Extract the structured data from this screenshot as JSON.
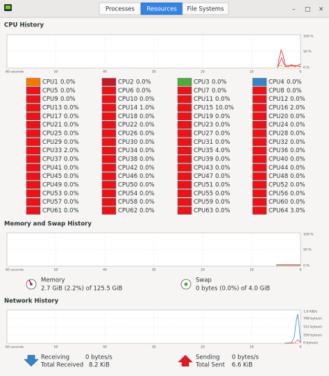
{
  "tabs": [
    "Processes",
    "Resources",
    "File Systems"
  ],
  "window_buttons": [
    "–",
    "□",
    "×"
  ],
  "cpu_history": {
    "title": "CPU History",
    "y_labels": [
      "100 %",
      "50 %",
      "0 %"
    ],
    "x_labels": [
      "60 seconds",
      "50",
      "40",
      "30",
      "20",
      "10",
      "0"
    ],
    "cpus": [
      {
        "name": "CPU1",
        "usage": "0.0%",
        "color": "#f57900"
      },
      {
        "name": "CPU2",
        "usage": "0.0%",
        "color": "#c01c28"
      },
      {
        "name": "CPU3",
        "usage": "0.0%",
        "color": "#4eaa3c"
      },
      {
        "name": "CPU4",
        "usage": "0.0%",
        "color": "#3584c4"
      },
      {
        "name": "CPU5",
        "usage": "0.0%",
        "color": "#e8141a"
      },
      {
        "name": "CPU6",
        "usage": "0.0%",
        "color": "#e8141a"
      },
      {
        "name": "CPU7",
        "usage": "0.0%",
        "color": "#e8141a"
      },
      {
        "name": "CPU8",
        "usage": "0.0%",
        "color": "#e8141a"
      },
      {
        "name": "CPU9",
        "usage": "0.0%",
        "color": "#e8141a"
      },
      {
        "name": "CPU10",
        "usage": "0.0%",
        "color": "#e8141a"
      },
      {
        "name": "CPU11",
        "usage": "0.0%",
        "color": "#e8141a"
      },
      {
        "name": "CPU12",
        "usage": "0.0%",
        "color": "#e8141a"
      },
      {
        "name": "CPU13",
        "usage": "0.0%",
        "color": "#e8141a"
      },
      {
        "name": "CPU14",
        "usage": "1.0%",
        "color": "#e8141a"
      },
      {
        "name": "CPU15",
        "usage": "10.0%",
        "color": "#e8141a"
      },
      {
        "name": "CPU16",
        "usage": "2.0%",
        "color": "#e8141a"
      },
      {
        "name": "CPU17",
        "usage": "0.0%",
        "color": "#e8141a"
      },
      {
        "name": "CPU18",
        "usage": "0.0%",
        "color": "#e8141a"
      },
      {
        "name": "CPU19",
        "usage": "0.0%",
        "color": "#e8141a"
      },
      {
        "name": "CPU20",
        "usage": "0.0%",
        "color": "#e8141a"
      },
      {
        "name": "CPU21",
        "usage": "0.0%",
        "color": "#e8141a"
      },
      {
        "name": "CPU22",
        "usage": "0.0%",
        "color": "#e8141a"
      },
      {
        "name": "CPU23",
        "usage": "0.0%",
        "color": "#e8141a"
      },
      {
        "name": "CPU24",
        "usage": "0.0%",
        "color": "#e8141a"
      },
      {
        "name": "CPU25",
        "usage": "0.0%",
        "color": "#e8141a"
      },
      {
        "name": "CPU26",
        "usage": "0.0%",
        "color": "#e8141a"
      },
      {
        "name": "CPU27",
        "usage": "0.0%",
        "color": "#e8141a"
      },
      {
        "name": "CPU28",
        "usage": "0.0%",
        "color": "#e8141a"
      },
      {
        "name": "CPU29",
        "usage": "0.0%",
        "color": "#e8141a"
      },
      {
        "name": "CPU30",
        "usage": "0.0%",
        "color": "#e8141a"
      },
      {
        "name": "CPU31",
        "usage": "0.0%",
        "color": "#e8141a"
      },
      {
        "name": "CPU32",
        "usage": "0.0%",
        "color": "#e8141a"
      },
      {
        "name": "CPU33",
        "usage": "2.0%",
        "color": "#e8141a"
      },
      {
        "name": "CPU34",
        "usage": "0.0%",
        "color": "#e8141a"
      },
      {
        "name": "CPU35",
        "usage": "4.0%",
        "color": "#e8141a"
      },
      {
        "name": "CPU36",
        "usage": "0.0%",
        "color": "#e8141a"
      },
      {
        "name": "CPU37",
        "usage": "0.0%",
        "color": "#e8141a"
      },
      {
        "name": "CPU38",
        "usage": "0.0%",
        "color": "#e8141a"
      },
      {
        "name": "CPU39",
        "usage": "0.0%",
        "color": "#e8141a"
      },
      {
        "name": "CPU40",
        "usage": "0.0%",
        "color": "#e8141a"
      },
      {
        "name": "CPU41",
        "usage": "0.0%",
        "color": "#e8141a"
      },
      {
        "name": "CPU42",
        "usage": "0.0%",
        "color": "#e8141a"
      },
      {
        "name": "CPU43",
        "usage": "0.0%",
        "color": "#e8141a"
      },
      {
        "name": "CPU44",
        "usage": "0.0%",
        "color": "#e8141a"
      },
      {
        "name": "CPU45",
        "usage": "0.0%",
        "color": "#e8141a"
      },
      {
        "name": "CPU46",
        "usage": "0.0%",
        "color": "#e8141a"
      },
      {
        "name": "CPU47",
        "usage": "0.0%",
        "color": "#e8141a"
      },
      {
        "name": "CPU48",
        "usage": "0.0%",
        "color": "#e8141a"
      },
      {
        "name": "CPU49",
        "usage": "0.0%",
        "color": "#e8141a"
      },
      {
        "name": "CPU50",
        "usage": "0.0%",
        "color": "#e8141a"
      },
      {
        "name": "CPU51",
        "usage": "0.0%",
        "color": "#e8141a"
      },
      {
        "name": "CPU52",
        "usage": "0.0%",
        "color": "#e8141a"
      },
      {
        "name": "CPU53",
        "usage": "0.0%",
        "color": "#e8141a"
      },
      {
        "name": "CPU54",
        "usage": "0.0%",
        "color": "#e8141a"
      },
      {
        "name": "CPU55",
        "usage": "0.0%",
        "color": "#e8141a"
      },
      {
        "name": "CPU56",
        "usage": "0.0%",
        "color": "#e8141a"
      },
      {
        "name": "CPU57",
        "usage": "0.0%",
        "color": "#e8141a"
      },
      {
        "name": "CPU58",
        "usage": "0.0%",
        "color": "#e8141a"
      },
      {
        "name": "CPU59",
        "usage": "0.0%",
        "color": "#e8141a"
      },
      {
        "name": "CPU60",
        "usage": "0.0%",
        "color": "#e8141a"
      },
      {
        "name": "CPU61",
        "usage": "0.0%",
        "color": "#e8141a"
      },
      {
        "name": "CPU62",
        "usage": "0.0%",
        "color": "#e8141a"
      },
      {
        "name": "CPU63",
        "usage": "0.0%",
        "color": "#e8141a"
      },
      {
        "name": "CPU64",
        "usage": "3.0%",
        "color": "#e8141a"
      }
    ]
  },
  "memory_history": {
    "title": "Memory and Swap History",
    "y_labels": [
      "100 %",
      "50 %",
      "0 %"
    ],
    "x_labels": [
      "60 seconds",
      "50",
      "40",
      "30",
      "20",
      "10",
      "0"
    ],
    "memory": {
      "label": "Memory",
      "detail": "2.7 GiB (2.2%) of 125.5 GiB"
    },
    "swap": {
      "label": "Swap",
      "detail": "0 bytes (0.0%) of 4.0 GiB"
    }
  },
  "network_history": {
    "title": "Network History",
    "y_labels": [
      "1.0 KiB/s",
      "768 bytes/s",
      "512 bytes/s",
      "256 bytes/s",
      "0 bytes/s"
    ],
    "x_labels": [
      "60 seconds",
      "50",
      "40",
      "30",
      "20",
      "10",
      "0"
    ],
    "receiving": {
      "label": "Receiving",
      "rate": "0 bytes/s",
      "total_label": "Total Received",
      "total": "8.2 KiB"
    },
    "sending": {
      "label": "Sending",
      "rate": "0 bytes/s",
      "total_label": "Total Sent",
      "total": "6.6 KiB"
    }
  }
}
